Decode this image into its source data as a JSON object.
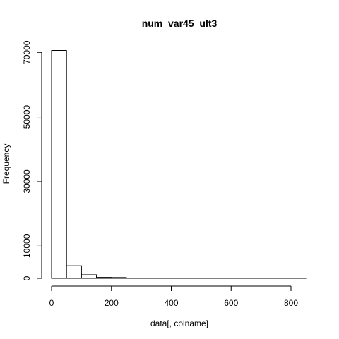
{
  "chart_data": {
    "type": "bar",
    "title": "num_var45_ult3",
    "xlabel": "data[, colname]",
    "ylabel": "Frequency",
    "bin_width": 50,
    "bins": [
      {
        "start": 0,
        "end": 50,
        "value": 70600
      },
      {
        "start": 50,
        "end": 100,
        "value": 3900
      },
      {
        "start": 100,
        "end": 150,
        "value": 1100
      },
      {
        "start": 150,
        "end": 200,
        "value": 300
      },
      {
        "start": 200,
        "end": 250,
        "value": 250
      },
      {
        "start": 250,
        "end": 300,
        "value": 60
      },
      {
        "start": 300,
        "end": 350,
        "value": 30
      },
      {
        "start": 350,
        "end": 400,
        "value": 20
      },
      {
        "start": 400,
        "end": 450,
        "value": 15
      },
      {
        "start": 450,
        "end": 500,
        "value": 10
      },
      {
        "start": 500,
        "end": 550,
        "value": 8
      },
      {
        "start": 550,
        "end": 600,
        "value": 5
      },
      {
        "start": 600,
        "end": 650,
        "value": 4
      },
      {
        "start": 650,
        "end": 700,
        "value": 3
      },
      {
        "start": 700,
        "end": 750,
        "value": 2
      },
      {
        "start": 750,
        "end": 800,
        "value": 2
      },
      {
        "start": 800,
        "end": 850,
        "value": 1
      }
    ],
    "xlim": [
      0,
      850
    ],
    "ylim": [
      0,
      72000
    ],
    "x_ticks": [
      0,
      200,
      400,
      600,
      800
    ],
    "y_ticks": [
      0,
      10000,
      30000,
      50000,
      70000
    ],
    "x_tick_labels": [
      "0",
      "200",
      "400",
      "600",
      "800"
    ],
    "y_tick_labels": [
      "0",
      "10000",
      "30000",
      "50000",
      "70000"
    ],
    "grid": false,
    "bar_fill": "#ffffff",
    "bar_stroke": "#000000"
  }
}
